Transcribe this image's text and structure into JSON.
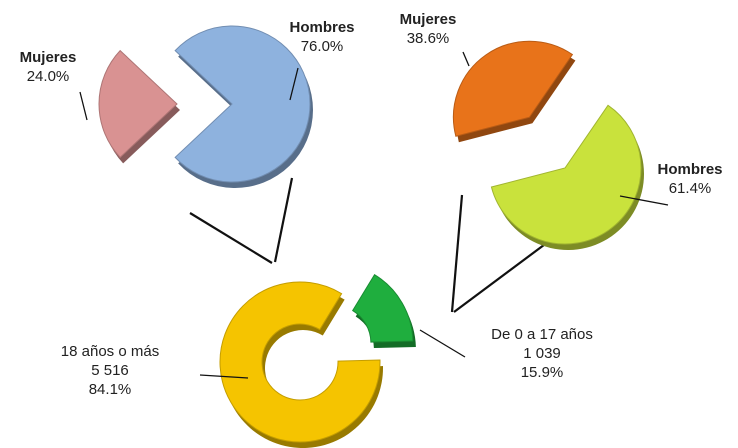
{
  "chart_data": [
    {
      "type": "donut",
      "categories": [
        "18 años o más",
        "De 0 a 17 años"
      ],
      "counts": [
        5516,
        1039
      ],
      "count_labels": [
        "5 516",
        "1 039"
      ],
      "values": [
        84.1,
        15.9
      ],
      "value_labels": [
        "84.1%",
        "15.9%"
      ],
      "colors": [
        "#f5c400",
        "#1fae3e"
      ]
    },
    {
      "type": "pie",
      "categories": [
        "Mujeres",
        "Hombres"
      ],
      "values": [
        24.0,
        76.0
      ],
      "value_labels": [
        "24.0%",
        "76.0%"
      ],
      "colors": [
        "#d99292",
        "#8eb2de"
      ]
    },
    {
      "type": "pie",
      "categories": [
        "Mujeres",
        "Hombres"
      ],
      "values": [
        38.6,
        61.4
      ],
      "value_labels": [
        "38.6%",
        "61.4%"
      ],
      "colors": [
        "#e8731a",
        "#c9e23c"
      ]
    }
  ]
}
